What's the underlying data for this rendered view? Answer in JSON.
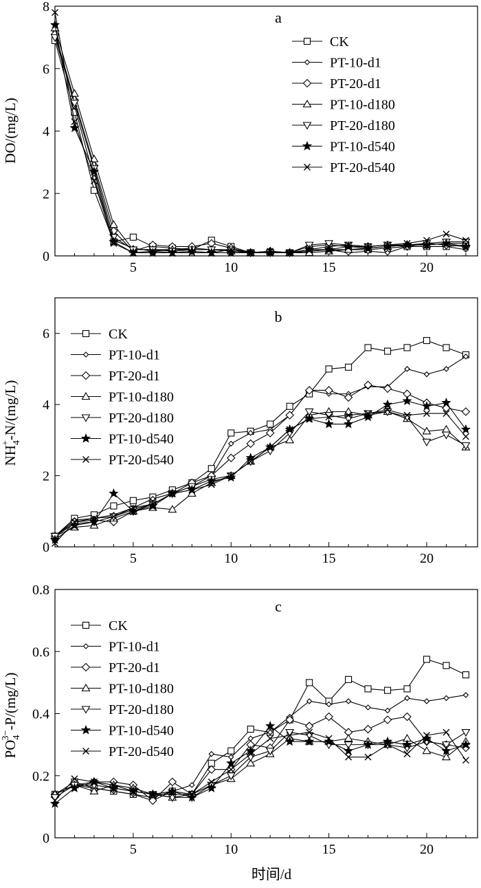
{
  "xlabel": "时间/d",
  "chart_data": [
    {
      "type": "line",
      "panel": "a",
      "ylabel": "DO/(mg/L)",
      "xlim": [
        1,
        22.6
      ],
      "ylim": [
        0,
        8
      ],
      "xticks": [
        5,
        10,
        15,
        20
      ],
      "yticks": [
        0,
        2,
        4,
        6,
        8
      ],
      "grid": false,
      "legend_position": "top-right",
      "x": [
        1,
        2,
        3,
        4,
        5,
        6,
        7,
        8,
        9,
        10,
        11,
        12,
        13,
        14,
        15,
        16,
        17,
        18,
        19,
        20,
        21,
        22
      ],
      "series": [
        {
          "name": "CK",
          "marker": "square",
          "values": [
            6.9,
            4.6,
            2.1,
            0.45,
            0.6,
            0.3,
            0.25,
            0.2,
            0.5,
            0.3,
            0.1,
            0.1,
            0.1,
            0.15,
            0.2,
            0.2,
            0.2,
            0.25,
            0.3,
            0.3,
            0.3,
            0.35
          ]
        },
        {
          "name": "PT-10-d1",
          "marker": "diamond-small",
          "values": [
            7.2,
            4.8,
            2.5,
            0.5,
            0.25,
            0.15,
            0.2,
            0.25,
            0.2,
            0.2,
            0.1,
            0.1,
            0.1,
            0.15,
            0.2,
            0.1,
            0.15,
            0.1,
            0.3,
            0.3,
            0.3,
            0.2
          ]
        },
        {
          "name": "PT-20-d1",
          "marker": "diamond",
          "values": [
            7.1,
            5.0,
            2.9,
            0.8,
            0.15,
            0.35,
            0.3,
            0.3,
            0.4,
            0.25,
            0.1,
            0.15,
            0.1,
            0.3,
            0.35,
            0.3,
            0.3,
            0.35,
            0.35,
            0.4,
            0.35,
            0.3
          ]
        },
        {
          "name": "PT-10-d180",
          "marker": "triangle-up",
          "values": [
            7.3,
            5.2,
            3.1,
            1.0,
            0.2,
            0.2,
            0.2,
            0.2,
            0.2,
            0.15,
            0.1,
            0.15,
            0.1,
            0.1,
            0.15,
            0.2,
            0.25,
            0.3,
            0.35,
            0.35,
            0.4,
            0.4
          ]
        },
        {
          "name": "PT-20-d180",
          "marker": "triangle-down",
          "values": [
            7.0,
            4.9,
            2.8,
            0.6,
            0.2,
            0.2,
            0.15,
            0.2,
            0.2,
            0.2,
            0.1,
            0.1,
            0.1,
            0.35,
            0.4,
            0.35,
            0.3,
            0.35,
            0.3,
            0.4,
            0.45,
            0.45
          ]
        },
        {
          "name": "PT-10-d540",
          "marker": "star",
          "values": [
            7.4,
            4.1,
            2.7,
            0.45,
            0.1,
            0.1,
            0.1,
            0.15,
            0.1,
            0.1,
            0.1,
            0.1,
            0.1,
            0.2,
            0.2,
            0.3,
            0.25,
            0.3,
            0.35,
            0.35,
            0.4,
            0.3
          ]
        },
        {
          "name": "PT-20-d540",
          "marker": "x",
          "values": [
            7.8,
            4.3,
            2.4,
            0.4,
            0.1,
            0.15,
            0.1,
            0.1,
            0.1,
            0.2,
            0.1,
            0.15,
            0.1,
            0.2,
            0.3,
            0.35,
            0.3,
            0.35,
            0.4,
            0.5,
            0.7,
            0.5
          ]
        }
      ]
    },
    {
      "type": "line",
      "panel": "b",
      "ylabel": "NH4+-N/(mg/L)",
      "ylabel_parts": {
        "base": "NH",
        "sub": "4",
        "sup": "+",
        "rest": "-N/(mg/L)"
      },
      "xlim": [
        1,
        22.6
      ],
      "ylim": [
        0,
        7
      ],
      "xticks": [
        5,
        10,
        15,
        20
      ],
      "yticks": [
        0,
        2,
        4,
        6
      ],
      "grid": false,
      "legend_position": "top-left",
      "x": [
        1,
        2,
        3,
        4,
        5,
        6,
        7,
        8,
        9,
        10,
        11,
        12,
        13,
        14,
        15,
        16,
        17,
        18,
        19,
        20,
        21,
        22
      ],
      "series": [
        {
          "name": "CK",
          "marker": "square",
          "values": [
            0.3,
            0.8,
            0.9,
            1.15,
            1.3,
            1.4,
            1.6,
            1.8,
            2.2,
            3.2,
            3.25,
            3.45,
            3.95,
            4.3,
            5.0,
            5.05,
            5.6,
            5.5,
            5.6,
            5.8,
            5.6,
            5.4
          ]
        },
        {
          "name": "PT-10-d1",
          "marker": "diamond-small",
          "values": [
            0.3,
            0.75,
            0.8,
            0.9,
            1.1,
            1.35,
            1.5,
            1.7,
            2.0,
            2.9,
            3.2,
            3.3,
            3.7,
            4.4,
            4.3,
            4.3,
            4.5,
            4.5,
            5.0,
            4.85,
            5.0,
            5.35
          ]
        },
        {
          "name": "PT-20-d1",
          "marker": "diamond",
          "values": [
            0.3,
            0.7,
            0.75,
            0.7,
            1.0,
            1.2,
            1.5,
            1.8,
            2.0,
            2.5,
            2.9,
            3.2,
            3.7,
            4.4,
            4.4,
            4.2,
            4.55,
            4.45,
            4.3,
            4.05,
            3.9,
            3.8
          ]
        },
        {
          "name": "PT-10-d180",
          "marker": "triangle-up",
          "values": [
            0.3,
            0.55,
            0.6,
            0.8,
            1.0,
            1.1,
            1.05,
            1.5,
            1.8,
            2.0,
            2.4,
            2.8,
            3.0,
            3.7,
            3.8,
            3.8,
            3.7,
            3.8,
            3.6,
            3.25,
            3.3,
            2.8
          ]
        },
        {
          "name": "PT-20-d180",
          "marker": "triangle-down",
          "values": [
            0.3,
            0.65,
            0.7,
            0.85,
            1.05,
            1.2,
            1.5,
            1.7,
            1.9,
            2.0,
            2.4,
            2.7,
            3.2,
            3.8,
            3.7,
            3.6,
            3.75,
            3.8,
            3.65,
            2.95,
            3.15,
            2.85
          ]
        },
        {
          "name": "PT-10-d540",
          "marker": "star",
          "values": [
            0.2,
            0.6,
            0.7,
            1.5,
            1.0,
            1.15,
            1.5,
            1.6,
            1.85,
            1.95,
            2.5,
            2.8,
            3.3,
            3.6,
            3.45,
            3.45,
            3.65,
            4.0,
            4.1,
            3.95,
            4.05,
            3.3
          ]
        },
        {
          "name": "PT-20-d540",
          "marker": "x",
          "values": [
            0.1,
            0.7,
            0.8,
            0.85,
            1.1,
            1.2,
            1.5,
            1.6,
            1.75,
            2.0,
            2.4,
            2.8,
            3.3,
            3.6,
            3.65,
            3.7,
            3.75,
            3.85,
            3.7,
            3.75,
            3.75,
            3.1
          ]
        }
      ]
    },
    {
      "type": "line",
      "panel": "c",
      "ylabel": "PO43--P/(mg/L)",
      "ylabel_parts": {
        "base": "PO",
        "sub": "4",
        "sup": "3−",
        "rest": "-P/(mg/L)"
      },
      "xlim": [
        1,
        22.6
      ],
      "ylim": [
        0,
        0.8
      ],
      "xticks": [
        5,
        10,
        15,
        20
      ],
      "yticks": [
        0,
        0.2,
        0.4,
        0.6,
        0.8
      ],
      "ytick_labels": [
        "0",
        "0.2",
        "0.4",
        "0.6",
        "0.8"
      ],
      "grid": false,
      "legend_position": "top-left",
      "x": [
        1,
        2,
        3,
        4,
        5,
        6,
        7,
        8,
        9,
        10,
        11,
        12,
        13,
        14,
        15,
        16,
        17,
        18,
        19,
        20,
        21,
        22
      ],
      "series": [
        {
          "name": "CK",
          "marker": "square",
          "values": [
            0.14,
            0.18,
            0.16,
            0.15,
            0.14,
            0.13,
            0.15,
            0.14,
            0.24,
            0.28,
            0.35,
            0.34,
            0.38,
            0.5,
            0.44,
            0.51,
            0.48,
            0.475,
            0.48,
            0.575,
            0.555,
            0.525
          ]
        },
        {
          "name": "PT-10-d1",
          "marker": "diamond-small",
          "values": [
            0.14,
            0.17,
            0.16,
            0.15,
            0.14,
            0.12,
            0.15,
            0.17,
            0.27,
            0.26,
            0.32,
            0.34,
            0.39,
            0.44,
            0.43,
            0.44,
            0.42,
            0.41,
            0.45,
            0.44,
            0.45,
            0.46
          ]
        },
        {
          "name": "PT-20-d1",
          "marker": "diamond",
          "values": [
            0.14,
            0.17,
            0.18,
            0.18,
            0.17,
            0.12,
            0.18,
            0.14,
            0.22,
            0.22,
            0.3,
            0.29,
            0.38,
            0.36,
            0.39,
            0.34,
            0.35,
            0.38,
            0.39,
            0.31,
            0.3,
            0.29
          ]
        },
        {
          "name": "PT-10-d180",
          "marker": "triangle-up",
          "values": [
            0.14,
            0.17,
            0.15,
            0.17,
            0.16,
            0.14,
            0.13,
            0.14,
            0.17,
            0.19,
            0.24,
            0.27,
            0.32,
            0.31,
            0.31,
            0.32,
            0.31,
            0.3,
            0.32,
            0.28,
            0.26,
            0.31
          ]
        },
        {
          "name": "PT-20-d180",
          "marker": "triangle-down",
          "values": [
            0.13,
            0.17,
            0.17,
            0.16,
            0.15,
            0.14,
            0.13,
            0.13,
            0.17,
            0.2,
            0.26,
            0.28,
            0.34,
            0.33,
            0.3,
            0.3,
            0.3,
            0.3,
            0.29,
            0.31,
            0.3,
            0.34
          ]
        },
        {
          "name": "PT-10-d540",
          "marker": "star",
          "values": [
            0.11,
            0.16,
            0.18,
            0.16,
            0.15,
            0.14,
            0.15,
            0.13,
            0.16,
            0.24,
            0.28,
            0.36,
            0.31,
            0.31,
            0.31,
            0.28,
            0.3,
            0.31,
            0.3,
            0.32,
            0.28,
            0.3
          ]
        },
        {
          "name": "PT-20-d540",
          "marker": "x",
          "values": [
            0.12,
            0.19,
            0.18,
            0.17,
            0.15,
            0.14,
            0.14,
            0.14,
            0.18,
            0.22,
            0.27,
            0.32,
            0.33,
            0.34,
            0.32,
            0.26,
            0.26,
            0.3,
            0.27,
            0.33,
            0.34,
            0.25
          ]
        }
      ]
    }
  ]
}
